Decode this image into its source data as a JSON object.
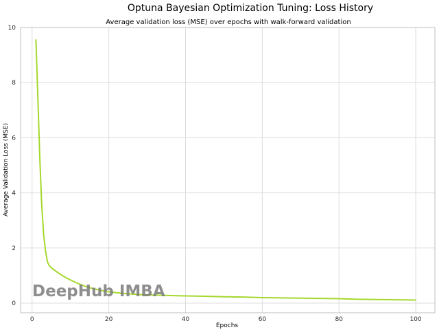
{
  "chart_data": {
    "type": "line",
    "title": "Optuna Bayesian Optimization Tuning: Loss History",
    "subtitle": "Average validation loss (MSE) over epochs with walk-forward validation",
    "xlabel": "Epochs",
    "ylabel": "Average Validation Loss (MSE)",
    "xlim": [
      -3,
      105
    ],
    "ylim": [
      -0.35,
      10
    ],
    "xticks": [
      0,
      20,
      40,
      60,
      80,
      100
    ],
    "yticks": [
      0,
      2,
      4,
      6,
      8,
      10
    ],
    "grid": true,
    "legend": "none",
    "series": [
      {
        "color": "#a5d82c",
        "x": [
          1,
          1.5,
          2,
          2.5,
          3,
          3.5,
          4,
          4.5,
          5,
          6,
          7,
          8,
          9,
          10,
          12,
          14,
          16,
          18,
          20,
          22,
          24,
          26,
          28,
          30,
          35,
          40,
          45,
          50,
          55,
          60,
          65,
          70,
          75,
          80,
          85,
          90,
          95,
          100
        ],
        "y": [
          9.55,
          7.5,
          5.3,
          3.6,
          2.5,
          1.9,
          1.5,
          1.35,
          1.28,
          1.18,
          1.08,
          0.99,
          0.91,
          0.84,
          0.71,
          0.6,
          0.52,
          0.46,
          0.41,
          0.38,
          0.35,
          0.33,
          0.31,
          0.3,
          0.28,
          0.26,
          0.25,
          0.23,
          0.22,
          0.2,
          0.19,
          0.18,
          0.17,
          0.16,
          0.14,
          0.13,
          0.12,
          0.11
        ]
      }
    ]
  },
  "watermark": "DeepHub IMBA"
}
